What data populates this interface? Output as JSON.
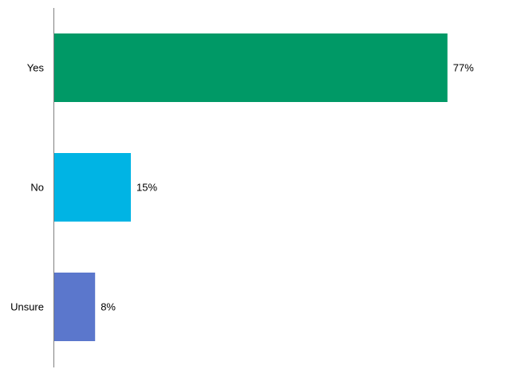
{
  "chart_data": {
    "type": "bar",
    "orientation": "horizontal",
    "categories": [
      "Yes",
      "No",
      "Unsure"
    ],
    "values": [
      77,
      15,
      8
    ],
    "value_labels": [
      "77%",
      "15%",
      "8%"
    ],
    "colors": [
      "#009966",
      "#00B4E4",
      "#5B77CC"
    ],
    "title": "",
    "xlabel": "",
    "ylabel": "",
    "xlim": [
      0,
      100
    ],
    "grid": false,
    "legend": "none"
  }
}
